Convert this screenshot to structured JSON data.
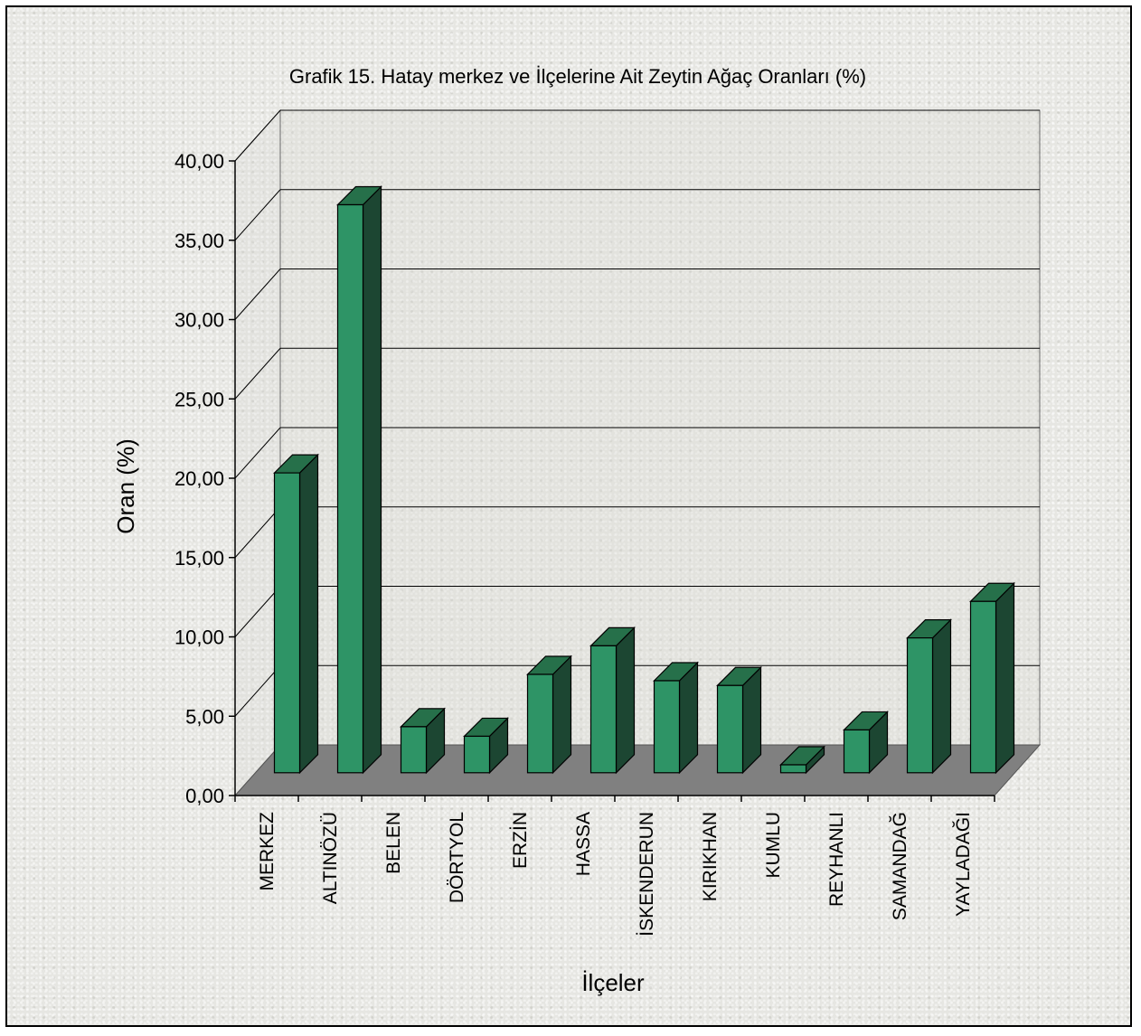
{
  "chart_data": {
    "type": "bar",
    "title": "Grafik 15. Hatay merkez ve İlçelerine Ait Zeytin Ağaç Oranları (%)",
    "xlabel": "İlçeler",
    "ylabel": "Oran (%)",
    "categories": [
      "MERKEZ",
      "ALTINÖZÜ",
      "BELEN",
      "DÖRTYOL",
      "ERZİN",
      "HASSA",
      "İSKENDERUN",
      "KIRIKHAN",
      "KUMLU",
      "REYHANLI",
      "SAMANDAĞ",
      "YAYLADAĞI"
    ],
    "values": [
      18.9,
      35.8,
      2.9,
      2.3,
      6.2,
      8.0,
      5.8,
      5.5,
      0.5,
      2.7,
      8.5,
      10.8
    ],
    "ylim": [
      0,
      40
    ],
    "yticks": [
      "0,00",
      "5,00",
      "10,00",
      "15,00",
      "20,00",
      "25,00",
      "30,00",
      "35,00",
      "40,00"
    ],
    "grid": true,
    "legend": "none",
    "colors": {
      "bar_front": "#2e9466",
      "bar_side": "#1c4632",
      "bar_top": "#26704a",
      "floor": "#808080",
      "wall": "#d9d9d5",
      "outline": "#000000"
    }
  }
}
